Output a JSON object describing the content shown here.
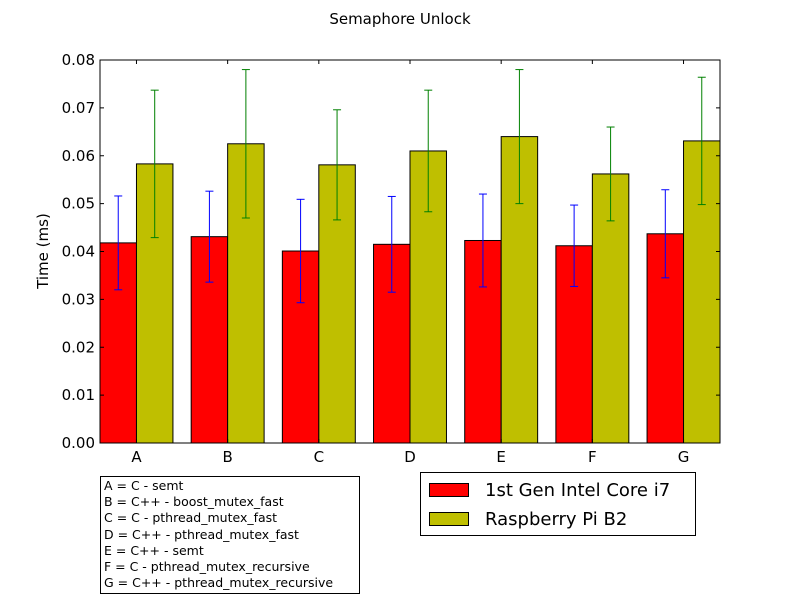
{
  "chart_data": {
    "type": "bar",
    "title": "Semaphore Unlock",
    "xlabel": "",
    "ylabel": "Time (ms)",
    "ylim": [
      0,
      0.08
    ],
    "yticks": [
      "0.00",
      "0.01",
      "0.02",
      "0.03",
      "0.04",
      "0.05",
      "0.06",
      "0.07",
      "0.08"
    ],
    "categories": [
      "A",
      "B",
      "C",
      "D",
      "E",
      "F",
      "G"
    ],
    "series": [
      {
        "name": "1st Gen Intel Core i7",
        "color": "#ff0000",
        "error_color": "#0000ff",
        "values": [
          0.0418,
          0.0431,
          0.0401,
          0.0415,
          0.0423,
          0.0412,
          0.0437
        ],
        "errors": [
          0.0098,
          0.0095,
          0.0108,
          0.01,
          0.0097,
          0.0085,
          0.0092
        ]
      },
      {
        "name": "Raspberry Pi B2",
        "color": "#bfbf00",
        "error_color": "#008000",
        "values": [
          0.0583,
          0.0625,
          0.0581,
          0.061,
          0.064,
          0.0562,
          0.0631
        ],
        "errors": [
          0.0154,
          0.0155,
          0.0115,
          0.0127,
          0.014,
          0.0098,
          0.0133
        ]
      }
    ],
    "grid": false,
    "legend_position": "bottom-right, below plot"
  },
  "notes": [
    "A = C - semt",
    "B = C++ - boost_mutex_fast",
    "C = C - pthread_mutex_fast",
    "D = C++ - pthread_mutex_fast",
    "E = C++ - semt",
    "F = C - pthread_mutex_recursive",
    "G = C++ - pthread_mutex_recursive"
  ]
}
